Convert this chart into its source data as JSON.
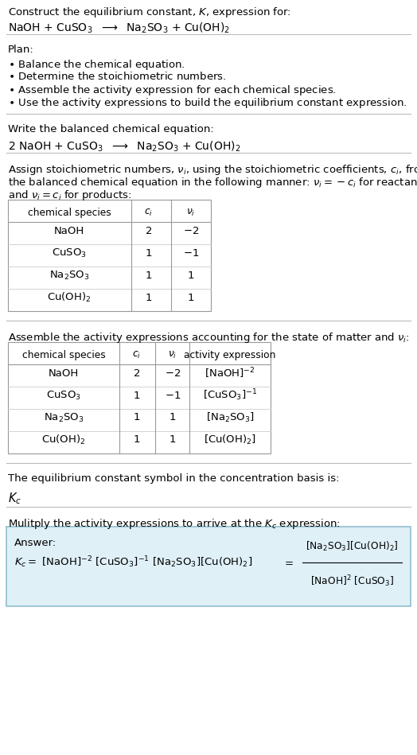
{
  "bg_color": "#ffffff",
  "text_color": "#000000",
  "answer_box_color": "#dff0f7",
  "answer_box_edge": "#90bfd0",
  "section_line_color": "#cccccc",
  "title_line1": "Construct the equilibrium constant, $K$, expression for:",
  "title_eq": "NaOH + CuSO$_3$  $\\longrightarrow$  Na$_2$SO$_3$ + Cu(OH)$_2$",
  "plan_header": "Plan:",
  "plan_items": [
    "$\\bullet$ Balance the chemical equation.",
    "$\\bullet$ Determine the stoichiometric numbers.",
    "$\\bullet$ Assemble the activity expression for each chemical species.",
    "$\\bullet$ Use the activity expressions to build the equilibrium constant expression."
  ],
  "balanced_header": "Write the balanced chemical equation:",
  "balanced_eq": "2 NaOH + CuSO$_3$  $\\longrightarrow$  Na$_2$SO$_3$ + Cu(OH)$_2$",
  "stoich_header1": "Assign stoichiometric numbers, $\\nu_i$, using the stoichiometric coefficients, $c_i$, from",
  "stoich_header2": "the balanced chemical equation in the following manner: $\\nu_i = -c_i$ for reactants",
  "stoich_header3": "and $\\nu_i = c_i$ for products:",
  "table1_col0": "chemical species",
  "table1_col1": "$c_i$",
  "table1_col2": "$\\nu_i$",
  "table1_rows": [
    [
      "NaOH",
      "2",
      "$-2$"
    ],
    [
      "CuSO$_3$",
      "1",
      "$-1$"
    ],
    [
      "Na$_2$SO$_3$",
      "1",
      "$1$"
    ],
    [
      "Cu(OH)$_2$",
      "1",
      "$1$"
    ]
  ],
  "activity_header": "Assemble the activity expressions accounting for the state of matter and $\\nu_i$:",
  "table2_col0": "chemical species",
  "table2_col1": "$c_i$",
  "table2_col2": "$\\nu_i$",
  "table2_col3": "activity expression",
  "table2_rows": [
    [
      "NaOH",
      "2",
      "$-2$",
      "[NaOH]$^{-2}$"
    ],
    [
      "CuSO$_3$",
      "1",
      "$-1$",
      "[CuSO$_3$]$^{-1}$"
    ],
    [
      "Na$_2$SO$_3$",
      "1",
      "$1$",
      "[Na$_2$SO$_3$]"
    ],
    [
      "Cu(OH)$_2$",
      "1",
      "$1$",
      "[Cu(OH)$_2$]"
    ]
  ],
  "kc_header": "The equilibrium constant symbol in the concentration basis is:",
  "kc_symbol": "$K_c$",
  "multiply_header": "Mulitply the activity expressions to arrive at the $K_c$ expression:",
  "answer_label": "Answer:",
  "answer_eq_left": "$K_c = $ [NaOH]$^{-2}$ [CuSO$_3$]$^{-1}$ [Na$_2$SO$_3$][Cu(OH)$_2$]",
  "answer_eq_equals": "$=$",
  "answer_eq_num": "[Na$_2$SO$_3$][Cu(OH)$_2$]",
  "answer_eq_den": "[NaOH]$^2$ [CuSO$_3$]"
}
